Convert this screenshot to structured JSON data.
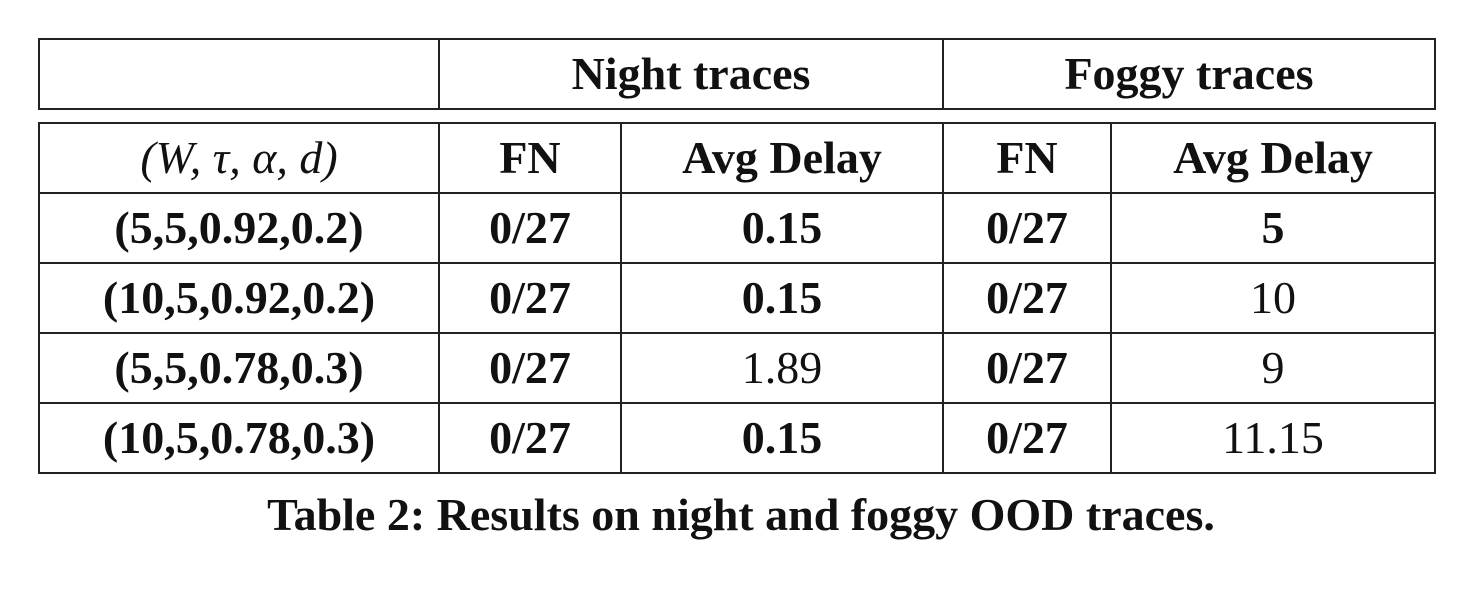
{
  "header_groups": {
    "empty": "",
    "night": "Night traces",
    "foggy": "Foggy traces"
  },
  "columns": {
    "params": "(W, τ, α, d)",
    "night_fn": "FN",
    "night_delay": "Avg Delay",
    "foggy_fn": "FN",
    "foggy_delay": "Avg Delay"
  },
  "rows": [
    {
      "params": "(5,5,0.92,0.2)",
      "night_fn": "0/27",
      "night_delay": "0.15",
      "night_delay_bold": true,
      "foggy_fn": "0/27",
      "foggy_delay": "5",
      "foggy_delay_bold": true
    },
    {
      "params": "(10,5,0.92,0.2)",
      "night_fn": "0/27",
      "night_delay": "0.15",
      "night_delay_bold": true,
      "foggy_fn": "0/27",
      "foggy_delay": "10",
      "foggy_delay_bold": false
    },
    {
      "params": "(5,5,0.78,0.3)",
      "night_fn": "0/27",
      "night_delay": "1.89",
      "night_delay_bold": false,
      "foggy_fn": "0/27",
      "foggy_delay": "9",
      "foggy_delay_bold": false
    },
    {
      "params": "(10,5,0.78,0.3)",
      "night_fn": "0/27",
      "night_delay": "0.15",
      "night_delay_bold": true,
      "foggy_fn": "0/27",
      "foggy_delay": "11.15",
      "foggy_delay_bold": false
    }
  ],
  "caption": "Table 2: Results on night and foggy OOD traces."
}
